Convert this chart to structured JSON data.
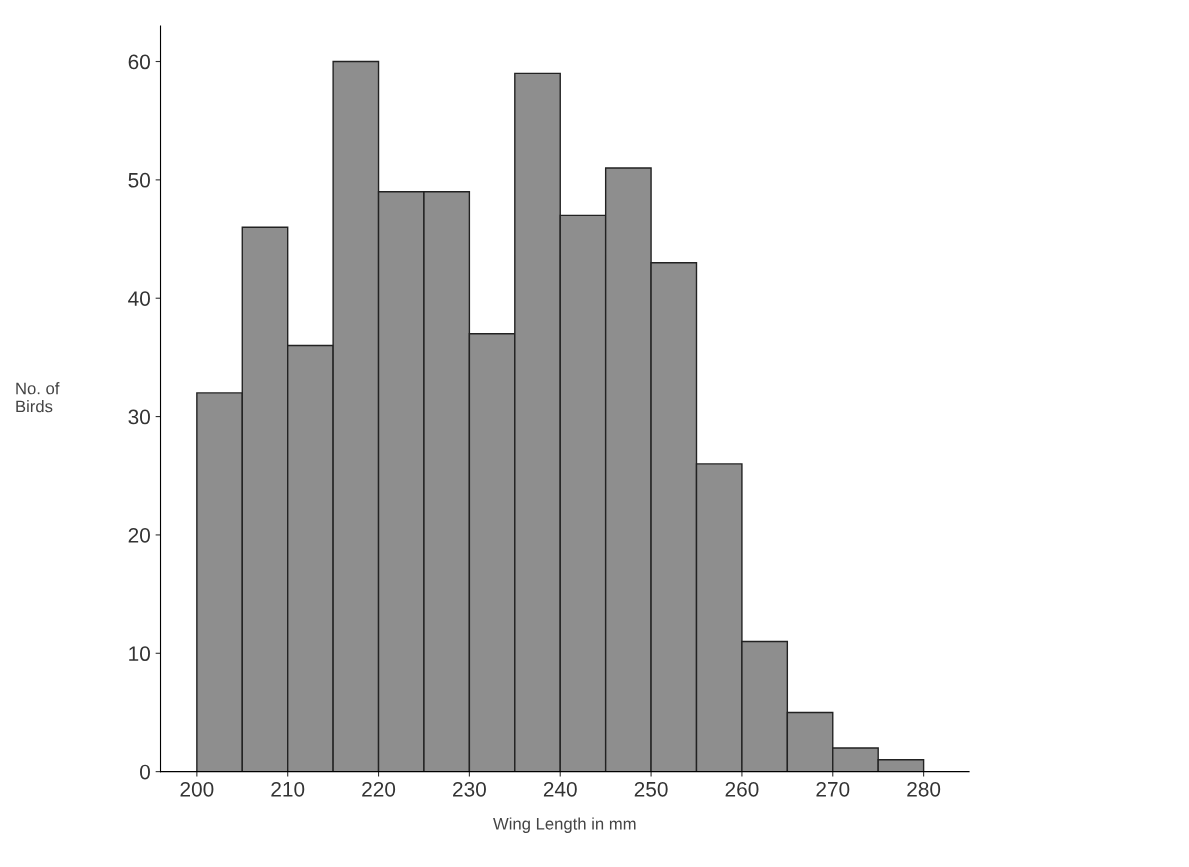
{
  "chart_data": {
    "type": "histogram",
    "xlabel": "Wing Length in mm",
    "ylabel": "No. of\nBirds",
    "bins": [
      200,
      205,
      210,
      215,
      220,
      225,
      230,
      235,
      240,
      245,
      250,
      255,
      260,
      265,
      270,
      275,
      280
    ],
    "values": [
      32,
      46,
      36,
      60,
      49,
      49,
      37,
      59,
      47,
      51,
      43,
      26,
      11,
      5,
      2,
      1
    ],
    "color": "#8e8e8e",
    "xlim": [
      196,
      285
    ],
    "ylim": [
      0,
      63
    ],
    "xticks": [
      200,
      210,
      220,
      230,
      240,
      250,
      260,
      270,
      280
    ],
    "yticks": [
      0,
      10,
      20,
      30,
      40,
      50,
      60
    ],
    "grid": false,
    "legend": false
  }
}
